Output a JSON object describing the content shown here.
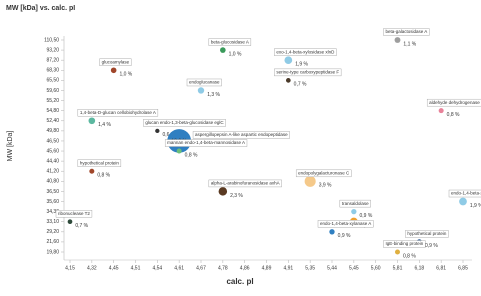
{
  "chart_data": {
    "type": "bubble",
    "title": "MW [kDa] vs. calc. pI",
    "x_label": "calc. pI",
    "y_label": "MW [kDa]",
    "xlim": [
      4.15,
      6.85
    ],
    "xticks": [
      {
        "value": 4.15,
        "label": "4,15"
      },
      {
        "value": 4.32,
        "label": "4,32"
      },
      {
        "value": 4.45,
        "label": "4,45"
      },
      {
        "value": 4.51,
        "label": "4,51"
      },
      {
        "value": 4.54,
        "label": "4,54"
      },
      {
        "value": 4.61,
        "label": "4,61"
      },
      {
        "value": 4.67,
        "label": "4,67"
      },
      {
        "value": 4.78,
        "label": "4,78"
      },
      {
        "value": 4.86,
        "label": "4,86"
      },
      {
        "value": 4.89,
        "label": "4,89"
      },
      {
        "value": 4.91,
        "label": "4,91"
      },
      {
        "value": 5.35,
        "label": "5,35"
      },
      {
        "value": 5.44,
        "label": "5,44"
      },
      {
        "value": 5.45,
        "label": "5,45"
      },
      {
        "value": 5.6,
        "label": "5,60"
      },
      {
        "value": 5.81,
        "label": "5,81"
      },
      {
        "value": 6.18,
        "label": "6,18"
      },
      {
        "value": 6.81,
        "label": "6,81"
      },
      {
        "value": 6.85,
        "label": "6,85"
      }
    ],
    "ylim": [
      110.5,
      19.8
    ],
    "yticks": [
      {
        "value": 110.5,
        "label": "110,50"
      },
      {
        "value": 93.2,
        "label": "93,20"
      },
      {
        "value": 87.2,
        "label": "87,20"
      },
      {
        "value": 68.3,
        "label": "68,30"
      },
      {
        "value": 65.5,
        "label": "65,50"
      },
      {
        "value": 59.6,
        "label": "59,60"
      },
      {
        "value": 55.2,
        "label": "55,20"
      },
      {
        "value": 54.8,
        "label": "54,80"
      },
      {
        "value": 52.4,
        "label": "52,40"
      },
      {
        "value": 49.8,
        "label": "49,80"
      },
      {
        "value": 46.5,
        "label": "46,50"
      },
      {
        "value": 45.6,
        "label": "45,60"
      },
      {
        "value": 44.4,
        "label": "44,40"
      },
      {
        "value": 41.2,
        "label": "41,20"
      },
      {
        "value": 40.8,
        "label": "40,80"
      },
      {
        "value": 36.5,
        "label": "36,50"
      },
      {
        "value": 35.6,
        "label": "35,60"
      },
      {
        "value": 34.3,
        "label": "34,30"
      },
      {
        "value": 33.1,
        "label": "33,10"
      },
      {
        "value": 29.2,
        "label": "29,20"
      },
      {
        "value": 21.6,
        "label": "21,60"
      },
      {
        "value": 19.8,
        "label": "19,80"
      }
    ],
    "points": [
      {
        "name": "beta-galactosidase A",
        "x": 5.81,
        "y": 110.5,
        "size": 1.1,
        "size_label": "1,1 %",
        "color": "#9e9e9e"
      },
      {
        "name": "beta-glucosidase A",
        "x": 4.78,
        "y": 93.2,
        "size": 1.0,
        "size_label": "1,0 %",
        "color": "#3a9a5b"
      },
      {
        "name": "exo-1,4-beta-xylosidase xlnD",
        "x": 4.91,
        "y": 87.2,
        "size": 1.9,
        "size_label": "1,9 %",
        "color": "#8fcbe6"
      },
      {
        "name": "glucoamylase",
        "x": 4.45,
        "y": 68.3,
        "size": 1.0,
        "size_label": "1,0 %",
        "color": "#a0462a"
      },
      {
        "name": "serine-type carboxypeptidase F",
        "x": 4.91,
        "y": 65.5,
        "size": 0.7,
        "size_label": "0,7 %",
        "color": "#4a3a2a"
      },
      {
        "name": "endoglucanase",
        "x": 4.67,
        "y": 59.6,
        "size": 1.3,
        "size_label": "1,3 %",
        "color": "#8fcbe6"
      },
      {
        "name": "aldehyde dehydrogenase",
        "x": 6.81,
        "y": 54.8,
        "size": 0.8,
        "size_label": "0,8 %",
        "color": "#e8829a"
      },
      {
        "name": "1,4-beta-D-glucan cellobiohydrolase A",
        "x": 4.32,
        "y": 52.4,
        "size": 1.4,
        "size_label": "1,4 %",
        "color": "#5cb8a0"
      },
      {
        "name": "glucan endo-1,3-beta-glucosidase eglC",
        "x": 4.54,
        "y": 49.8,
        "size": 0.6,
        "size_label": "0,6 %",
        "color": "#333333"
      },
      {
        "name": "aspergillopepsin A-like aspartic endopeptidase",
        "x": 4.61,
        "y": 46.5,
        "size": 18.0,
        "size_label": "18,0 %",
        "color": "#2f7fc1"
      },
      {
        "name": "mannan endo-1,4-beta-mannosidase A",
        "x": 4.61,
        "y": 45.6,
        "size": 0.8,
        "size_label": "0,8 %",
        "color": "#6bbf7a"
      },
      {
        "name": "hypothetical protein",
        "x": 4.32,
        "y": 41.2,
        "size": 0.8,
        "size_label": "0,8 %",
        "color": "#a0462a"
      },
      {
        "name": "endopolygalacturonase C",
        "x": 5.35,
        "y": 40.8,
        "size": 3.9,
        "size_label": "3,9 %",
        "color": "#f5c98a"
      },
      {
        "name": "alpha-L-arabinofuranosidase axhA",
        "x": 4.78,
        "y": 36.5,
        "size": 2.3,
        "size_label": "2,3 %",
        "color": "#5a3a22"
      },
      {
        "name": "ribonuclease T2",
        "x": 4.15,
        "y": 33.1,
        "size": 0.7,
        "size_label": "0,7 %",
        "color": "#2e4a3a"
      },
      {
        "name": "endo-1,4-beta-xylanase C",
        "x": 6.85,
        "y": 35.6,
        "size": 1.9,
        "size_label": "1,9 %",
        "color": "#8fcbe6"
      },
      {
        "name": "transaldolase",
        "x": 5.45,
        "y": 34.3,
        "size": 0.9,
        "size_label": "0,9 %",
        "color": "#8fcbe6"
      },
      {
        "name": null,
        "x": 5.45,
        "y": 33.1,
        "size": 2.1,
        "size_label": "2,1 %",
        "color": "#f0a030"
      },
      {
        "name": "endo-1,4-beta-xylanase A",
        "x": 5.44,
        "y": 29.2,
        "size": 0.9,
        "size_label": "0,9 %",
        "color": "#2f7fc1"
      },
      {
        "name": "hypothetical protein",
        "x": 6.18,
        "y": 21.6,
        "size": 0.9,
        "size_label": "0,9 %",
        "color": "#1f4f8f"
      },
      {
        "name": "IgE-binding protein",
        "x": 5.81,
        "y": 19.8,
        "size": 0.8,
        "size_label": "0,8 %",
        "color": "#e0b040"
      }
    ]
  }
}
